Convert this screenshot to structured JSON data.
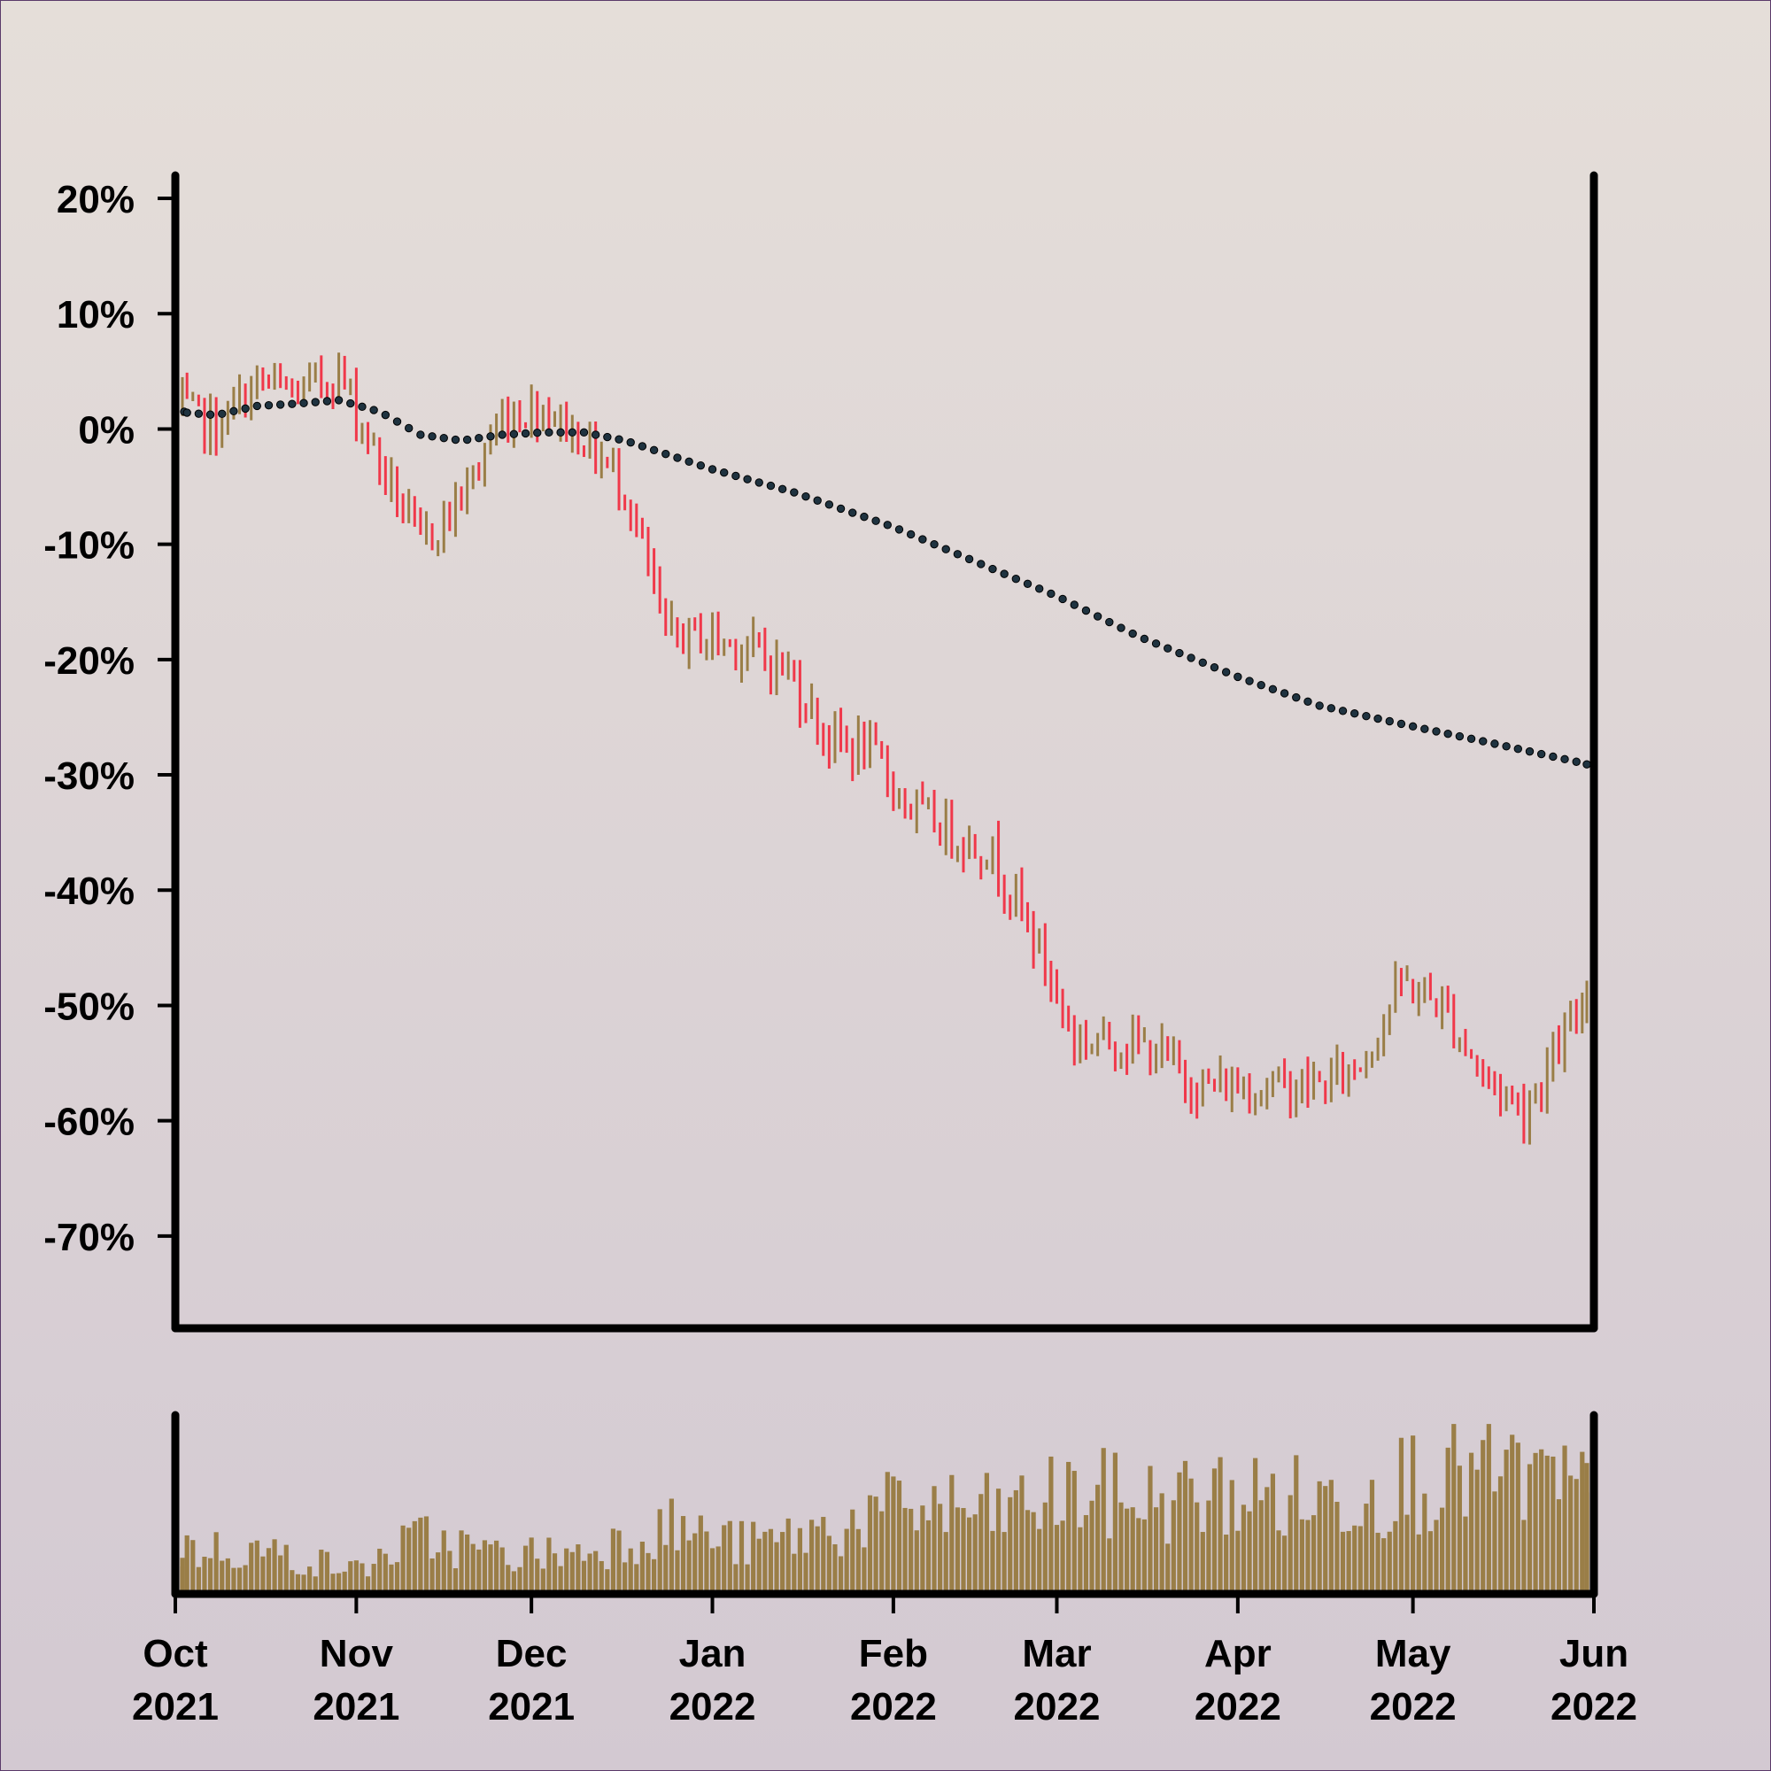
{
  "chart_data": {
    "type": "ohlc",
    "title": "",
    "ylabel": "",
    "xlabel": "",
    "y_unit": "%",
    "ylim": [
      -78,
      22
    ],
    "y_ticks": [
      "20%",
      "10%",
      "0%",
      "-10%",
      "-20%",
      "-30%",
      "-40%",
      "-50%",
      "-60%",
      "-70%"
    ],
    "x_range": [
      "2021-10-01",
      "2022-06-01"
    ],
    "x_ticks": [
      {
        "month": "Oct",
        "year": "2021",
        "date": "2021-10-01"
      },
      {
        "month": "Nov",
        "year": "2021",
        "date": "2021-11-01"
      },
      {
        "month": "Dec",
        "year": "2021",
        "date": "2021-12-01"
      },
      {
        "month": "Jan",
        "year": "2022",
        "date": "2022-01-01"
      },
      {
        "month": "Feb",
        "year": "2022",
        "date": "2022-02-01"
      },
      {
        "month": "Mar",
        "year": "2022",
        "date": "2022-03-01"
      },
      {
        "month": "Apr",
        "year": "2022",
        "date": "2022-04-01"
      },
      {
        "month": "May",
        "year": "2022",
        "date": "2022-05-01"
      },
      {
        "month": "Jun",
        "year": "2022",
        "date": "2022-06-01"
      }
    ],
    "price_close_pct_weekly": [
      {
        "date": "2021-10-01",
        "value": 2
      },
      {
        "date": "2021-10-08",
        "value": 0
      },
      {
        "date": "2021-10-15",
        "value": 4
      },
      {
        "date": "2021-10-22",
        "value": 3
      },
      {
        "date": "2021-10-29",
        "value": 5
      },
      {
        "date": "2021-11-05",
        "value": -3
      },
      {
        "date": "2021-11-12",
        "value": -10
      },
      {
        "date": "2021-11-19",
        "value": -6
      },
      {
        "date": "2021-11-26",
        "value": 1
      },
      {
        "date": "2021-12-03",
        "value": 2
      },
      {
        "date": "2021-12-10",
        "value": -1
      },
      {
        "date": "2021-12-17",
        "value": -5
      },
      {
        "date": "2021-12-24",
        "value": -18
      },
      {
        "date": "2021-12-31",
        "value": -18
      },
      {
        "date": "2022-01-07",
        "value": -19
      },
      {
        "date": "2022-01-14",
        "value": -21
      },
      {
        "date": "2022-01-21",
        "value": -27
      },
      {
        "date": "2022-01-28",
        "value": -28
      },
      {
        "date": "2022-02-04",
        "value": -33
      },
      {
        "date": "2022-02-11",
        "value": -35
      },
      {
        "date": "2022-02-18",
        "value": -37
      },
      {
        "date": "2022-02-25",
        "value": -44
      },
      {
        "date": "2022-03-04",
        "value": -53
      },
      {
        "date": "2022-03-11",
        "value": -53
      },
      {
        "date": "2022-03-18",
        "value": -54
      },
      {
        "date": "2022-03-25",
        "value": -57
      },
      {
        "date": "2022-04-01",
        "value": -57
      },
      {
        "date": "2022-04-08",
        "value": -57
      },
      {
        "date": "2022-04-15",
        "value": -57
      },
      {
        "date": "2022-04-22",
        "value": -55
      },
      {
        "date": "2022-04-29",
        "value": -48
      },
      {
        "date": "2022-05-06",
        "value": -50
      },
      {
        "date": "2022-05-13",
        "value": -56
      },
      {
        "date": "2022-05-20",
        "value": -59
      },
      {
        "date": "2022-05-27",
        "value": -53
      },
      {
        "date": "2022-06-01",
        "value": -48
      }
    ],
    "moving_average_pct": [
      {
        "date": "2021-10-01",
        "value": 1.5
      },
      {
        "date": "2021-10-08",
        "value": 1.2
      },
      {
        "date": "2021-10-15",
        "value": 2.0
      },
      {
        "date": "2021-10-22",
        "value": 2.2
      },
      {
        "date": "2021-10-29",
        "value": 2.5
      },
      {
        "date": "2021-11-05",
        "value": 1.5
      },
      {
        "date": "2021-11-12",
        "value": -0.5
      },
      {
        "date": "2021-11-19",
        "value": -1.0
      },
      {
        "date": "2021-11-26",
        "value": -0.5
      },
      {
        "date": "2021-12-03",
        "value": -0.3
      },
      {
        "date": "2021-12-10",
        "value": -0.3
      },
      {
        "date": "2021-12-17",
        "value": -1.0
      },
      {
        "date": "2022-01-01",
        "value": -3.5
      },
      {
        "date": "2022-01-15",
        "value": -5.5
      },
      {
        "date": "2022-02-01",
        "value": -8.5
      },
      {
        "date": "2022-02-15",
        "value": -11.5
      },
      {
        "date": "2022-03-01",
        "value": -14.5
      },
      {
        "date": "2022-03-15",
        "value": -18.0
      },
      {
        "date": "2022-04-01",
        "value": -21.5
      },
      {
        "date": "2022-04-15",
        "value": -24.0
      },
      {
        "date": "2022-05-01",
        "value": -25.8
      },
      {
        "date": "2022-05-15",
        "value": -27.3
      },
      {
        "date": "2022-06-01",
        "value": -29.2
      }
    ],
    "volume_relative_weekly": [
      {
        "date": "2021-10-01",
        "value": 0.28
      },
      {
        "date": "2021-10-15",
        "value": 0.27
      },
      {
        "date": "2021-11-01",
        "value": 0.15
      },
      {
        "date": "2021-11-12",
        "value": 0.35
      },
      {
        "date": "2021-11-26",
        "value": 0.24
      },
      {
        "date": "2021-12-10",
        "value": 0.26
      },
      {
        "date": "2021-12-24",
        "value": 0.42
      },
      {
        "date": "2022-01-07",
        "value": 0.3
      },
      {
        "date": "2022-01-21",
        "value": 0.4
      },
      {
        "date": "2022-02-04",
        "value": 0.55
      },
      {
        "date": "2022-02-18",
        "value": 0.5
      },
      {
        "date": "2022-03-04",
        "value": 0.62
      },
      {
        "date": "2022-03-18",
        "value": 0.58
      },
      {
        "date": "2022-04-01",
        "value": 0.62
      },
      {
        "date": "2022-04-15",
        "value": 0.58
      },
      {
        "date": "2022-05-01",
        "value": 0.72
      },
      {
        "date": "2022-05-15",
        "value": 0.76
      },
      {
        "date": "2022-06-01",
        "value": 0.6
      }
    ],
    "colors": {
      "up": "#9a7e47",
      "down": "#f0384a",
      "average": "#1f3340",
      "volume": "#9a7e47",
      "axis": "#000000"
    },
    "grid": false,
    "legend": "none"
  }
}
